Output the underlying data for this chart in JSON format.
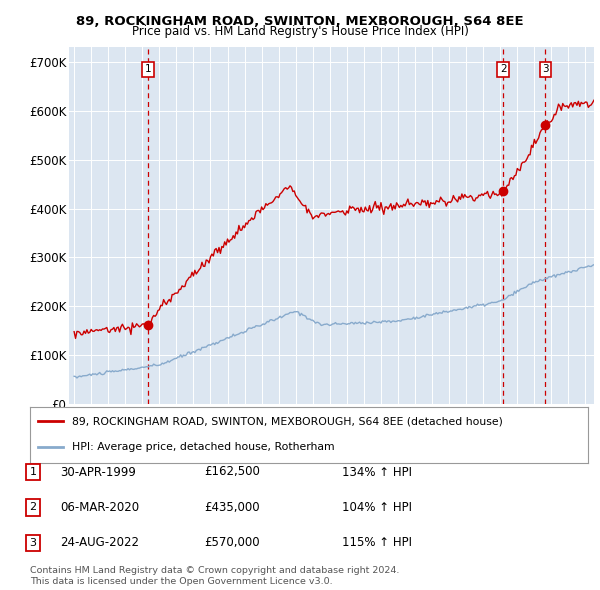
{
  "title1": "89, ROCKINGHAM ROAD, SWINTON, MEXBOROUGH, S64 8EE",
  "title2": "Price paid vs. HM Land Registry's House Price Index (HPI)",
  "ylabel_ticks": [
    "£0",
    "£100K",
    "£200K",
    "£300K",
    "£400K",
    "£500K",
    "£600K",
    "£700K"
  ],
  "ytick_values": [
    0,
    100000,
    200000,
    300000,
    400000,
    500000,
    600000,
    700000
  ],
  "ylim": [
    0,
    730000
  ],
  "xlim_start": 1994.7,
  "xlim_end": 2025.5,
  "legend_line1": "89, ROCKINGHAM ROAD, SWINTON, MEXBOROUGH, S64 8EE (detached house)",
  "legend_line2": "HPI: Average price, detached house, Rotherham",
  "line_color_red": "#cc0000",
  "line_color_blue": "#88aacc",
  "background_color": "#dce6f1",
  "sale_markers": [
    {
      "label": "1",
      "date_x": 1999.33,
      "price": 162500,
      "date_str": "30-APR-1999",
      "price_str": "£162,500",
      "hpi_str": "134% ↑ HPI"
    },
    {
      "label": "2",
      "date_x": 2020.17,
      "price": 435000,
      "date_str": "06-MAR-2020",
      "price_str": "£435,000",
      "hpi_str": "104% ↑ HPI"
    },
    {
      "label": "3",
      "date_x": 2022.65,
      "price": 570000,
      "date_str": "24-AUG-2022",
      "price_str": "£570,000",
      "hpi_str": "115% ↑ HPI"
    }
  ],
  "footer1": "Contains HM Land Registry data © Crown copyright and database right 2024.",
  "footer2": "This data is licensed under the Open Government Licence v3.0.",
  "dashed_line_color": "#cc0000",
  "dot_color": "#cc0000"
}
